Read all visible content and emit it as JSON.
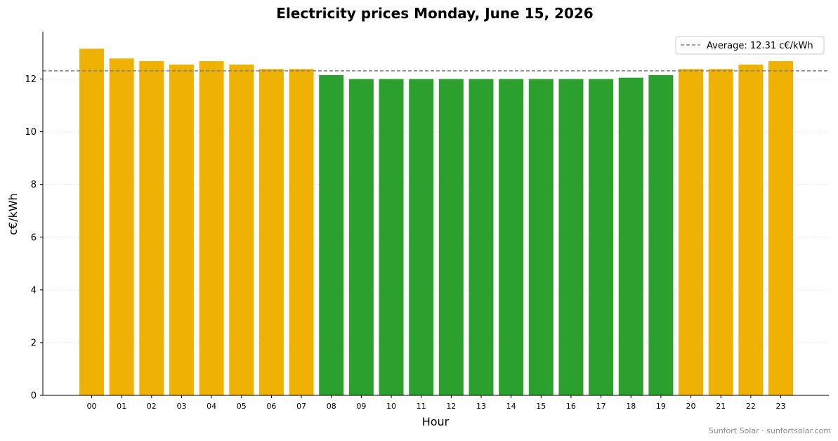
{
  "chart_data": {
    "type": "bar",
    "title": "Electricity prices Monday, June 15, 2026",
    "xlabel": "Hour",
    "ylabel": "c€/kWh",
    "categories": [
      "00",
      "01",
      "02",
      "03",
      "04",
      "05",
      "06",
      "07",
      "08",
      "09",
      "10",
      "11",
      "12",
      "13",
      "14",
      "15",
      "16",
      "17",
      "18",
      "19",
      "20",
      "21",
      "22",
      "23"
    ],
    "values": [
      13.15,
      12.78,
      12.68,
      12.55,
      12.68,
      12.55,
      12.38,
      12.38,
      12.15,
      12.0,
      12.0,
      12.0,
      12.0,
      12.0,
      12.0,
      12.0,
      12.0,
      12.0,
      12.05,
      12.15,
      12.38,
      12.38,
      12.55,
      12.68
    ],
    "average": 12.31,
    "average_label": "Average: 12.31 c€/kWh",
    "ylim": [
      0,
      13.8
    ],
    "yticks": [
      "0",
      "2",
      "4",
      "6",
      "8",
      "10",
      "12"
    ],
    "grid": "horizontal dotted",
    "legend_position": "top-right",
    "colors": {
      "above_average": "#F0B105",
      "below_average": "#2CA02C",
      "average_line": "#808080",
      "grid": "#dddddd"
    }
  },
  "footer": {
    "credit": "Sunfort Solar · sunfortsolar.com"
  }
}
